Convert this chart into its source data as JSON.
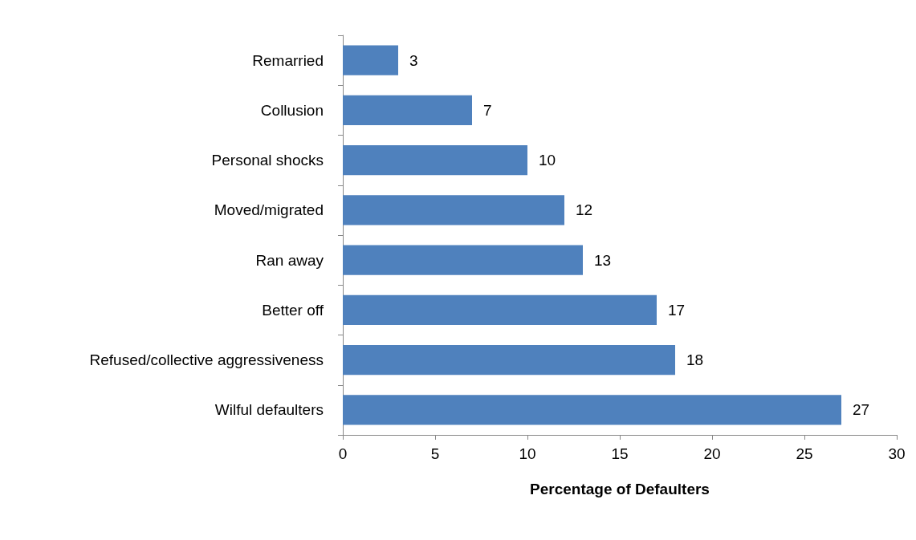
{
  "chart_data": {
    "type": "bar",
    "orientation": "horizontal",
    "categories": [
      "Remarried",
      "Collusion",
      "Personal shocks",
      "Moved/migrated",
      "Ran away",
      "Better off",
      "Refused/collective aggressiveness",
      "Wilful defaulters"
    ],
    "values": [
      3,
      7,
      10,
      12,
      13,
      17,
      18,
      27
    ],
    "color": "#4f81bd",
    "xlabel": "Percentage of Defaulters",
    "xlim": [
      0,
      30
    ],
    "xticks": [
      0,
      5,
      10,
      15,
      20,
      25,
      30
    ],
    "grid": false,
    "data_labels": true
  }
}
